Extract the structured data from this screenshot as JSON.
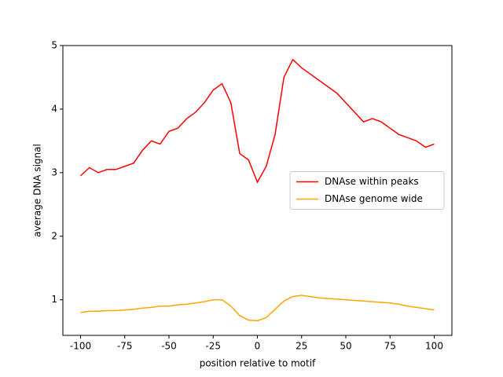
{
  "chart_data": {
    "type": "line",
    "xlabel": "position relative to motif",
    "ylabel": "average DNA signal",
    "x": [
      -100,
      -95,
      -90,
      -85,
      -80,
      -75,
      -70,
      -65,
      -60,
      -55,
      -50,
      -45,
      -40,
      -35,
      -30,
      -25,
      -20,
      -15,
      -10,
      -5,
      0,
      5,
      10,
      15,
      20,
      25,
      30,
      35,
      40,
      45,
      50,
      55,
      60,
      65,
      70,
      75,
      80,
      85,
      90,
      95,
      100
    ],
    "series": [
      {
        "name": "DNAse within peaks",
        "color": "#ff0000",
        "values": [
          2.95,
          3.08,
          3.0,
          3.05,
          3.05,
          3.1,
          3.15,
          3.35,
          3.5,
          3.45,
          3.65,
          3.7,
          3.85,
          3.95,
          4.1,
          4.3,
          4.4,
          4.1,
          3.3,
          3.2,
          2.85,
          3.1,
          3.6,
          4.5,
          4.78,
          4.65,
          4.55,
          4.45,
          4.35,
          4.25,
          4.1,
          3.95,
          3.8,
          3.85,
          3.8,
          3.7,
          3.6,
          3.55,
          3.5,
          3.4,
          3.45
        ]
      },
      {
        "name": "DNAse genome wide",
        "color": "#ffa500",
        "values": [
          0.8,
          0.82,
          0.82,
          0.83,
          0.83,
          0.84,
          0.85,
          0.87,
          0.88,
          0.9,
          0.9,
          0.92,
          0.93,
          0.95,
          0.97,
          1.0,
          1.0,
          0.9,
          0.75,
          0.68,
          0.67,
          0.72,
          0.85,
          0.98,
          1.05,
          1.07,
          1.05,
          1.03,
          1.02,
          1.01,
          1.0,
          0.99,
          0.98,
          0.97,
          0.96,
          0.95,
          0.93,
          0.9,
          0.88,
          0.86,
          0.84
        ]
      }
    ],
    "xlim": [
      -110,
      110
    ],
    "ylim": [
      0.44,
      5.0
    ],
    "xticks": [
      -100,
      -75,
      -50,
      -25,
      0,
      25,
      50,
      75,
      100
    ],
    "yticks": [
      1,
      2,
      3,
      4,
      5
    ],
    "legend": "center right"
  }
}
